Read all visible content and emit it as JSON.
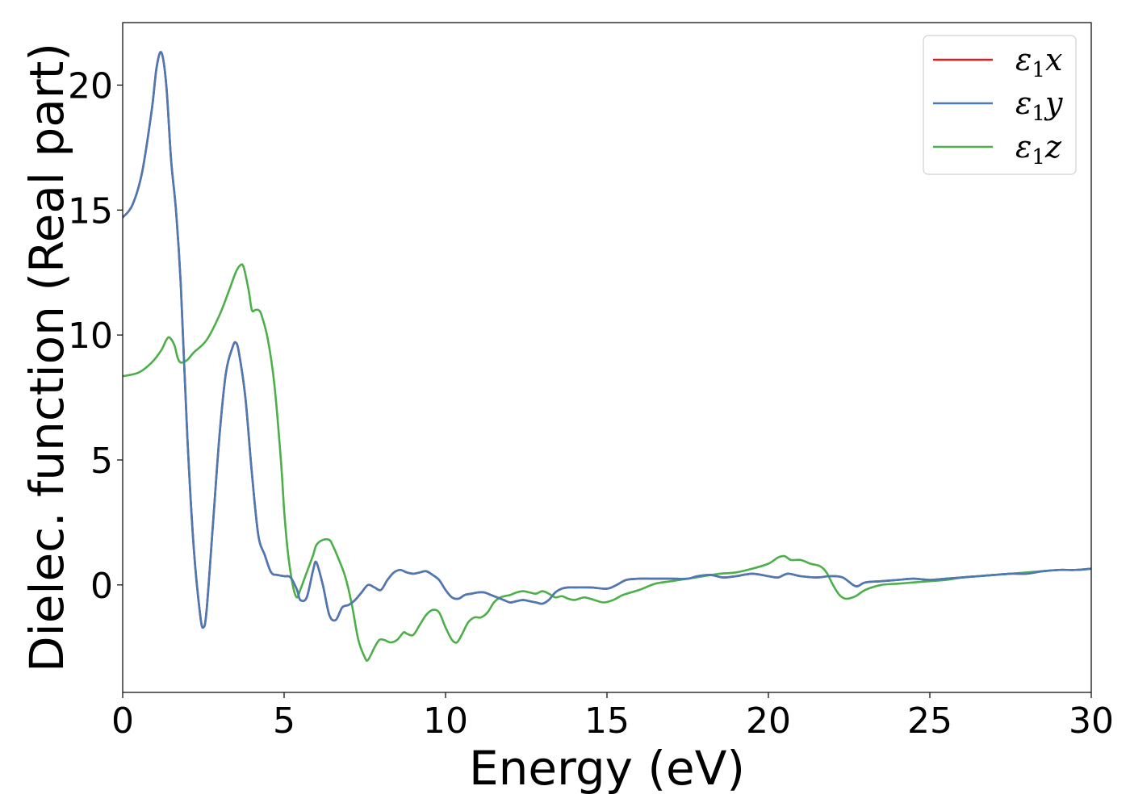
{
  "chart_data": {
    "type": "line",
    "title": "",
    "xlabel": "Energy (eV)",
    "ylabel": "Dielec. function (Real part)",
    "xlim": [
      0,
      30
    ],
    "ylim": [
      -4.3,
      22.5
    ],
    "x_ticks": [
      "0",
      "5",
      "10",
      "15",
      "20",
      "25",
      "30"
    ],
    "y_ticks": [
      "0",
      "5",
      "10",
      "15",
      "20"
    ],
    "grid": false,
    "legend_position": "top-right",
    "series": [
      {
        "name": "ε1x",
        "legend_base": "ε",
        "legend_sub": "1",
        "legend_var": "x",
        "color": "#e41a1c",
        "x": [
          0,
          0.3,
          0.6,
          0.9,
          1.05,
          1.2,
          1.35,
          1.5,
          1.65,
          1.8,
          2.0,
          2.2,
          2.4,
          2.5,
          2.6,
          2.8,
          3.0,
          3.2,
          3.4,
          3.5,
          3.6,
          3.8,
          4.0,
          4.2,
          4.4,
          4.6,
          4.8,
          5.0,
          5.2,
          5.4,
          5.5,
          5.7,
          5.9,
          6.0,
          6.2,
          6.4,
          6.6,
          6.8,
          7.0,
          7.2,
          7.4,
          7.6,
          7.8,
          8.0,
          8.2,
          8.4,
          8.6,
          8.8,
          9.0,
          9.2,
          9.4,
          9.6,
          9.8,
          10.0,
          10.2,
          10.4,
          10.6,
          10.8,
          11.0,
          11.2,
          11.4,
          11.6,
          11.8,
          12.0,
          12.2,
          12.4,
          12.6,
          12.8,
          13.0,
          13.2,
          13.4,
          13.6,
          13.8,
          14.0,
          14.5,
          15.0,
          15.3,
          15.6,
          16.0,
          16.5,
          17.0,
          17.5,
          17.8,
          18.2,
          18.6,
          19.0,
          19.5,
          20.0,
          20.3,
          20.6,
          21.0,
          21.5,
          21.9,
          22.3,
          22.7,
          23.0,
          23.5,
          24.0,
          24.5,
          25.0,
          25.5,
          26.0,
          26.5,
          27.0,
          27.5,
          28.0,
          28.5,
          29.0,
          29.5,
          30.0
        ],
        "y": [
          14.7,
          15.2,
          16.5,
          19.0,
          20.7,
          21.3,
          20.0,
          17.0,
          15.0,
          12.0,
          6.0,
          1.5,
          -1.2,
          -1.7,
          -1.0,
          2.5,
          6.0,
          8.5,
          9.5,
          9.7,
          9.3,
          7.5,
          4.5,
          2.0,
          1.2,
          0.5,
          0.4,
          0.35,
          0.3,
          -0.2,
          -0.6,
          -0.5,
          0.6,
          0.9,
          0.0,
          -1.2,
          -1.4,
          -0.9,
          -0.8,
          -0.6,
          -0.3,
          0.0,
          -0.1,
          -0.2,
          0.2,
          0.5,
          0.6,
          0.5,
          0.45,
          0.5,
          0.55,
          0.4,
          0.2,
          -0.2,
          -0.5,
          -0.55,
          -0.4,
          -0.35,
          -0.3,
          -0.3,
          -0.4,
          -0.5,
          -0.6,
          -0.7,
          -0.65,
          -0.6,
          -0.65,
          -0.7,
          -0.75,
          -0.6,
          -0.3,
          -0.15,
          -0.1,
          -0.1,
          -0.1,
          -0.15,
          0.0,
          0.2,
          0.25,
          0.25,
          0.25,
          0.25,
          0.35,
          0.4,
          0.3,
          0.35,
          0.45,
          0.35,
          0.3,
          0.45,
          0.35,
          0.3,
          0.35,
          0.3,
          -0.05,
          0.1,
          0.15,
          0.2,
          0.25,
          0.2,
          0.25,
          0.3,
          0.35,
          0.4,
          0.45,
          0.45,
          0.55,
          0.6,
          0.6,
          0.65
        ]
      },
      {
        "name": "ε1y",
        "legend_base": "ε",
        "legend_sub": "1",
        "legend_var": "y",
        "color": "#4a7ab5",
        "x": [
          0,
          0.3,
          0.6,
          0.9,
          1.05,
          1.2,
          1.35,
          1.5,
          1.65,
          1.8,
          2.0,
          2.2,
          2.4,
          2.5,
          2.6,
          2.8,
          3.0,
          3.2,
          3.4,
          3.5,
          3.6,
          3.8,
          4.0,
          4.2,
          4.4,
          4.6,
          4.8,
          5.0,
          5.2,
          5.4,
          5.5,
          5.7,
          5.9,
          6.0,
          6.2,
          6.4,
          6.6,
          6.8,
          7.0,
          7.2,
          7.4,
          7.6,
          7.8,
          8.0,
          8.2,
          8.4,
          8.6,
          8.8,
          9.0,
          9.2,
          9.4,
          9.6,
          9.8,
          10.0,
          10.2,
          10.4,
          10.6,
          10.8,
          11.0,
          11.2,
          11.4,
          11.6,
          11.8,
          12.0,
          12.2,
          12.4,
          12.6,
          12.8,
          13.0,
          13.2,
          13.4,
          13.6,
          13.8,
          14.0,
          14.5,
          15.0,
          15.3,
          15.6,
          16.0,
          16.5,
          17.0,
          17.5,
          17.8,
          18.2,
          18.6,
          19.0,
          19.5,
          20.0,
          20.3,
          20.6,
          21.0,
          21.5,
          21.9,
          22.3,
          22.7,
          23.0,
          23.5,
          24.0,
          24.5,
          25.0,
          25.5,
          26.0,
          26.5,
          27.0,
          27.5,
          28.0,
          28.5,
          29.0,
          29.5,
          30.0
        ],
        "y": [
          14.7,
          15.2,
          16.5,
          19.0,
          20.7,
          21.3,
          20.0,
          17.0,
          15.0,
          12.0,
          6.0,
          1.5,
          -1.2,
          -1.7,
          -1.0,
          2.5,
          6.0,
          8.5,
          9.5,
          9.7,
          9.3,
          7.5,
          4.5,
          2.0,
          1.2,
          0.5,
          0.4,
          0.35,
          0.3,
          -0.2,
          -0.6,
          -0.5,
          0.6,
          0.9,
          0.0,
          -1.2,
          -1.4,
          -0.9,
          -0.8,
          -0.6,
          -0.3,
          0.0,
          -0.1,
          -0.2,
          0.2,
          0.5,
          0.6,
          0.5,
          0.45,
          0.5,
          0.55,
          0.4,
          0.2,
          -0.2,
          -0.5,
          -0.55,
          -0.4,
          -0.35,
          -0.3,
          -0.3,
          -0.4,
          -0.5,
          -0.6,
          -0.7,
          -0.65,
          -0.6,
          -0.65,
          -0.7,
          -0.75,
          -0.6,
          -0.3,
          -0.15,
          -0.1,
          -0.1,
          -0.1,
          -0.15,
          0.0,
          0.2,
          0.25,
          0.25,
          0.25,
          0.25,
          0.35,
          0.4,
          0.3,
          0.35,
          0.45,
          0.35,
          0.3,
          0.45,
          0.35,
          0.3,
          0.35,
          0.3,
          -0.05,
          0.1,
          0.15,
          0.2,
          0.25,
          0.2,
          0.25,
          0.3,
          0.35,
          0.4,
          0.45,
          0.45,
          0.55,
          0.6,
          0.6,
          0.65
        ]
      },
      {
        "name": "ε1z",
        "legend_base": "ε",
        "legend_sub": "1",
        "legend_var": "z",
        "color": "#4daf4a",
        "x": [
          0,
          0.5,
          0.9,
          1.2,
          1.35,
          1.45,
          1.6,
          1.7,
          1.8,
          2.0,
          2.2,
          2.6,
          3.0,
          3.3,
          3.5,
          3.65,
          3.75,
          3.9,
          4.0,
          4.1,
          4.2,
          4.3,
          4.5,
          4.7,
          4.9,
          5.0,
          5.1,
          5.2,
          5.3,
          5.4,
          5.5,
          5.7,
          5.9,
          6.0,
          6.2,
          6.4,
          6.5,
          6.7,
          6.9,
          7.1,
          7.3,
          7.5,
          7.6,
          7.8,
          7.95,
          8.1,
          8.3,
          8.5,
          8.7,
          8.8,
          9.0,
          9.2,
          9.4,
          9.6,
          9.8,
          10.0,
          10.2,
          10.35,
          10.5,
          10.7,
          10.9,
          11.1,
          11.3,
          11.5,
          11.7,
          12.0,
          12.2,
          12.4,
          12.6,
          12.8,
          13.0,
          13.2,
          13.4,
          13.6,
          13.8,
          14.0,
          14.3,
          14.6,
          14.9,
          15.2,
          15.5,
          16.0,
          16.5,
          17.0,
          17.5,
          18.0,
          18.5,
          19.0,
          19.5,
          20.0,
          20.3,
          20.5,
          20.7,
          21.0,
          21.3,
          21.6,
          21.8,
          22.0,
          22.2,
          22.4,
          22.7,
          23.0,
          23.5,
          24.0,
          24.5,
          25.0,
          25.5,
          26.0,
          26.5,
          27.0,
          27.5,
          28.0,
          28.5,
          29.0,
          29.5,
          30.0
        ],
        "y": [
          8.35,
          8.5,
          8.9,
          9.4,
          9.8,
          9.9,
          9.6,
          9.1,
          8.9,
          9.0,
          9.3,
          9.8,
          10.8,
          11.8,
          12.5,
          12.8,
          12.7,
          11.8,
          11.0,
          11.0,
          11.0,
          10.8,
          9.8,
          8.0,
          5.0,
          3.0,
          1.5,
          0.5,
          -0.2,
          -0.5,
          -0.2,
          0.5,
          1.2,
          1.6,
          1.8,
          1.8,
          1.6,
          1.0,
          0.3,
          -0.8,
          -2.2,
          -2.9,
          -3.0,
          -2.5,
          -2.2,
          -2.2,
          -2.3,
          -2.2,
          -1.9,
          -1.95,
          -2.0,
          -1.6,
          -1.2,
          -1.0,
          -1.1,
          -1.7,
          -2.2,
          -2.3,
          -2.0,
          -1.5,
          -1.3,
          -1.3,
          -1.1,
          -0.7,
          -0.5,
          -0.4,
          -0.3,
          -0.25,
          -0.3,
          -0.35,
          -0.25,
          -0.35,
          -0.5,
          -0.45,
          -0.55,
          -0.6,
          -0.5,
          -0.6,
          -0.7,
          -0.6,
          -0.4,
          -0.2,
          0.05,
          0.15,
          0.25,
          0.35,
          0.45,
          0.5,
          0.65,
          0.85,
          1.1,
          1.15,
          1.0,
          1.0,
          0.85,
          0.75,
          0.5,
          0.0,
          -0.4,
          -0.55,
          -0.45,
          -0.2,
          0.0,
          0.05,
          0.1,
          0.15,
          0.2,
          0.3,
          0.35,
          0.4,
          0.45,
          0.5,
          0.55,
          0.6,
          0.6,
          0.65
        ]
      }
    ]
  }
}
